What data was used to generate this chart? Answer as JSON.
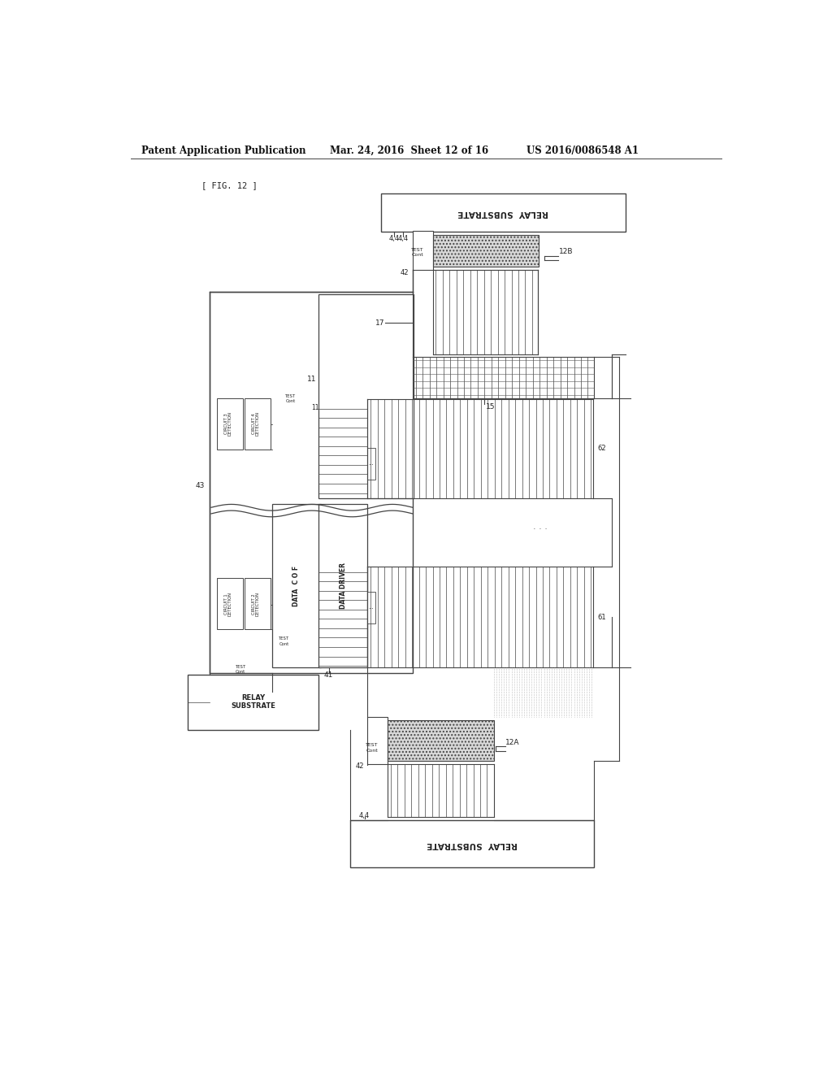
{
  "title_line1": "Patent Application Publication",
  "title_line2": "Mar. 24, 2016  Sheet 12 of 16",
  "title_line3": "US 2016/0086548 A1",
  "fig_label": "[ FIG. 12 ]",
  "bg_color": "#ffffff",
  "line_color": "#444444"
}
